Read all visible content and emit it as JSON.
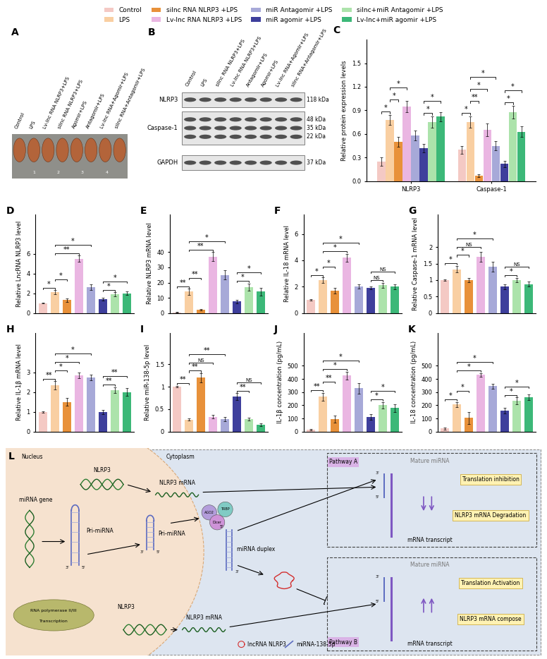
{
  "groups": [
    {
      "name": "Control",
      "color": "#f4c9c4"
    },
    {
      "name": "LPS",
      "color": "#f9cfa2"
    },
    {
      "name": "silnc RNA NLRP3 +LPS",
      "color": "#e8913a"
    },
    {
      "name": "Lv-lnc RNA NLRP3 +LPS",
      "color": "#eab6e2"
    },
    {
      "name": "miR Antagomir +LPS",
      "color": "#a7a9d8"
    },
    {
      "name": "miR agomir +LPS",
      "color": "#3e3f9c"
    },
    {
      "name": "silnc+miR Antagomir +LPS",
      "color": "#ace3ab"
    },
    {
      "name": "Lv-lnc+miR agomir +LPS",
      "color": "#3cb878"
    }
  ],
  "legend": "upper center",
  "panel_A": {
    "letter": "A",
    "labels": [
      "Control",
      "LPS",
      "Lv-lnc RNA NLRP3+LPS",
      "silnc RNA NLRP3+LPS",
      "Agomir+LPS",
      "Antagomir+LPS",
      "Lv-lnc RNA+Agomir+LPS",
      "silnc RNA+Antagomir+LPS"
    ],
    "ruler": [
      "1",
      "2",
      "3",
      "4"
    ]
  },
  "panel_B": {
    "letter": "B",
    "lanes": [
      "Control",
      "LPS",
      "silnc RNA NLRP3+LPS",
      "Lv-lnc RNA NLRP3+LPS",
      "Antagomir+LPS",
      "Agomir+LPS",
      "Lv-lnc RNA+Agomir+LPS",
      "silnc RNA+Antagomir+LPS"
    ],
    "proteins": [
      {
        "name": "NLRP3",
        "bands": [
          "118 kDa"
        ]
      },
      {
        "name": "Caspase-1",
        "bands": [
          "48 kDa",
          "35 kDa",
          "22 kDa"
        ]
      },
      {
        "name": "GAPDH",
        "bands": [
          "37 kDa"
        ]
      }
    ]
  },
  "chart_data": [
    {
      "letter": "C",
      "type": "bar",
      "y_label": "Relative protein expression levels",
      "categories": [
        "NLRP3",
        "Caspase-1"
      ],
      "series": [
        {
          "name": "Control",
          "color": "#f4c9c4",
          "values": [
            0.25,
            0.4
          ],
          "errors": [
            0.05,
            0.05
          ]
        },
        {
          "name": "LPS",
          "color": "#f9cfa2",
          "values": [
            0.78,
            0.75
          ],
          "errors": [
            0.06,
            0.07
          ]
        },
        {
          "name": "silnc RNA NLRP3 +LPS",
          "color": "#e8913a",
          "values": [
            0.5,
            0.07
          ],
          "errors": [
            0.06,
            0.02
          ]
        },
        {
          "name": "Lv-lnc RNA NLRP3 +LPS",
          "color": "#eab6e2",
          "values": [
            0.95,
            0.65
          ],
          "errors": [
            0.07,
            0.08
          ]
        },
        {
          "name": "miR Antagomir +LPS",
          "color": "#a7a9d8",
          "values": [
            0.58,
            0.45
          ],
          "errors": [
            0.06,
            0.06
          ]
        },
        {
          "name": "miR agomir +LPS",
          "color": "#3e3f9c",
          "values": [
            0.42,
            0.22
          ],
          "errors": [
            0.05,
            0.04
          ]
        },
        {
          "name": "silnc+miR Antagomir +LPS",
          "color": "#ace3ab",
          "values": [
            0.75,
            0.88
          ],
          "errors": [
            0.07,
            0.08
          ]
        },
        {
          "name": "Lv-lnc+miR agomir +LPS",
          "color": "#3cb878",
          "values": [
            0.82,
            0.63
          ],
          "errors": [
            0.06,
            0.07
          ]
        }
      ],
      "ylim": [
        0,
        1.8
      ],
      "yticks": [
        0.0,
        0.3,
        0.6,
        0.9,
        1.2,
        1.5
      ],
      "significance": [
        {
          "group": 0,
          "from": 0,
          "to": 1,
          "label": "*"
        },
        {
          "group": 0,
          "from": 1,
          "to": 2,
          "label": "*"
        },
        {
          "group": 0,
          "from": 1,
          "to": 3,
          "label": "*"
        },
        {
          "group": 0,
          "from": 5,
          "to": 6,
          "label": "*"
        },
        {
          "group": 0,
          "from": 5,
          "to": 7,
          "label": "*"
        },
        {
          "group": 1,
          "from": 0,
          "to": 1,
          "label": "*"
        },
        {
          "group": 1,
          "from": 1,
          "to": 2,
          "label": "**"
        },
        {
          "group": 1,
          "from": 1,
          "to": 3,
          "label": "*"
        },
        {
          "group": 1,
          "from": 1,
          "to": 4,
          "label": "*"
        },
        {
          "group": 1,
          "from": 5,
          "to": 6,
          "label": "*"
        },
        {
          "group": 1,
          "from": 5,
          "to": 7,
          "label": "*"
        }
      ]
    },
    {
      "letter": "D",
      "type": "bar",
      "y_label": "Relative LncRNA NLRP3 level",
      "tick_labels": "y",
      "values": [
        1,
        2.1,
        1.3,
        5.5,
        2.6,
        1.4,
        1.9,
        2.0
      ],
      "errors": [
        0.05,
        0.2,
        0.15,
        0.3,
        0.3,
        0.15,
        0.2,
        0.2
      ],
      "colors": [
        "#f4c9c4",
        "#f9cfa2",
        "#e8913a",
        "#eab6e2",
        "#a7a9d8",
        "#3e3f9c",
        "#ace3ab",
        "#3cb878"
      ],
      "ylim": [
        0,
        10
      ],
      "yticks": [
        0,
        2,
        4,
        6
      ],
      "significance": [
        {
          "from": 0,
          "to": 1,
          "label": "*"
        },
        {
          "from": 1,
          "to": 2,
          "label": "*"
        },
        {
          "from": 1,
          "to": 3,
          "label": "**"
        },
        {
          "from": 1,
          "to": 4,
          "label": "*"
        },
        {
          "from": 5,
          "to": 6,
          "label": "*"
        },
        {
          "from": 5,
          "to": 7,
          "label": "*"
        }
      ]
    },
    {
      "letter": "E",
      "type": "bar",
      "y_label": "Relative NLRP3 mRNA level",
      "tick_labels": "y",
      "values": [
        0.5,
        14,
        2,
        37,
        25,
        7.5,
        17,
        14
      ],
      "errors": [
        0.1,
        2,
        0.5,
        3,
        3,
        1.2,
        2.5,
        2.5
      ],
      "colors": [
        "#f4c9c4",
        "#f9cfa2",
        "#e8913a",
        "#eab6e2",
        "#a7a9d8",
        "#3e3f9c",
        "#ace3ab",
        "#3cb878"
      ],
      "ylim": [
        0,
        65
      ],
      "yticks": [
        0,
        10,
        20,
        30,
        40
      ],
      "significance": [
        {
          "from": 0,
          "to": 1,
          "label": "**"
        },
        {
          "from": 1,
          "to": 2,
          "label": "**"
        },
        {
          "from": 1,
          "to": 3,
          "label": "**"
        },
        {
          "from": 1,
          "to": 4,
          "label": "*"
        },
        {
          "from": 5,
          "to": 6,
          "label": "*"
        },
        {
          "from": 5,
          "to": 7,
          "label": "*"
        }
      ]
    },
    {
      "letter": "F",
      "type": "bar",
      "y_label": "Relative IL-18 mRNA level",
      "tick_labels": "y",
      "values": [
        1,
        2.5,
        1.7,
        4.2,
        2.0,
        1.9,
        2.1,
        2.0
      ],
      "errors": [
        0.05,
        0.2,
        0.2,
        0.3,
        0.15,
        0.1,
        0.2,
        0.2
      ],
      "colors": [
        "#f4c9c4",
        "#f9cfa2",
        "#e8913a",
        "#eab6e2",
        "#a7a9d8",
        "#3e3f9c",
        "#ace3ab",
        "#3cb878"
      ],
      "ylim": [
        0,
        7.5
      ],
      "yticks": [
        0,
        2,
        4,
        6
      ],
      "significance": [
        {
          "from": 0,
          "to": 1,
          "label": "*"
        },
        {
          "from": 1,
          "to": 2,
          "label": "*"
        },
        {
          "from": 1,
          "to": 3,
          "label": "*"
        },
        {
          "from": 1,
          "to": 4,
          "label": "*"
        },
        {
          "from": 5,
          "to": 6,
          "label": "NS"
        },
        {
          "from": 5,
          "to": 7,
          "label": "NS"
        }
      ]
    },
    {
      "letter": "G",
      "type": "bar",
      "y_label": "Relative Caspase-1 mRNA level",
      "tick_labels": "y",
      "values": [
        1,
        1.33,
        1.0,
        1.7,
        1.4,
        0.8,
        1.0,
        0.88
      ],
      "errors": [
        0.03,
        0.1,
        0.07,
        0.15,
        0.15,
        0.08,
        0.07,
        0.08
      ],
      "colors": [
        "#f4c9c4",
        "#f9cfa2",
        "#e8913a",
        "#eab6e2",
        "#a7a9d8",
        "#3e3f9c",
        "#ace3ab",
        "#3cb878"
      ],
      "ylim": [
        0,
        3
      ],
      "yticks": [
        0,
        0.5,
        1,
        1.5,
        2
      ],
      "significance": [
        {
          "from": 0,
          "to": 1,
          "label": "*"
        },
        {
          "from": 1,
          "to": 2,
          "label": "*"
        },
        {
          "from": 1,
          "to": 3,
          "label": "NS"
        },
        {
          "from": 1,
          "to": 4,
          "label": "*"
        },
        {
          "from": 5,
          "to": 6,
          "label": "*"
        },
        {
          "from": 5,
          "to": 7,
          "label": "NS"
        }
      ]
    },
    {
      "letter": "H",
      "type": "bar",
      "y_label": "Relative IL-1β mRNA level",
      "tick_labels": "y",
      "values": [
        1,
        2.35,
        1.5,
        2.85,
        2.75,
        1.0,
        2.1,
        2.0
      ],
      "errors": [
        0.03,
        0.2,
        0.2,
        0.15,
        0.15,
        0.1,
        0.15,
        0.2
      ],
      "colors": [
        "#f4c9c4",
        "#f9cfa2",
        "#e8913a",
        "#eab6e2",
        "#a7a9d8",
        "#3e3f9c",
        "#ace3ab",
        "#3cb878"
      ],
      "ylim": [
        0,
        5
      ],
      "yticks": [
        0,
        1,
        2,
        3
      ],
      "significance": [
        {
          "from": 0,
          "to": 1,
          "label": "**"
        },
        {
          "from": 1,
          "to": 2,
          "label": "*"
        },
        {
          "from": 1,
          "to": 3,
          "label": "*"
        },
        {
          "from": 1,
          "to": 4,
          "label": "*"
        },
        {
          "from": 5,
          "to": 6,
          "label": "**"
        },
        {
          "from": 5,
          "to": 7,
          "label": "**"
        }
      ]
    },
    {
      "letter": "I",
      "type": "bar",
      "y_label": "Relative miR-138-5p level",
      "tick_labels": "y",
      "values": [
        1,
        0.27,
        1.2,
        0.33,
        0.28,
        0.78,
        0.28,
        0.15
      ],
      "errors": [
        0.02,
        0.03,
        0.1,
        0.04,
        0.05,
        0.08,
        0.03,
        0.03
      ],
      "colors": [
        "#f4c9c4",
        "#f9cfa2",
        "#e8913a",
        "#eab6e2",
        "#a7a9d8",
        "#3e3f9c",
        "#ace3ab",
        "#3cb878"
      ],
      "ylim": [
        0,
        2.2
      ],
      "yticks": [
        0,
        0.5,
        1,
        1.5
      ],
      "significance": [
        {
          "from": 0,
          "to": 1,
          "label": "**"
        },
        {
          "from": 1,
          "to": 2,
          "label": "**"
        },
        {
          "from": 1,
          "to": 3,
          "label": "NS"
        },
        {
          "from": 1,
          "to": 4,
          "label": "**"
        },
        {
          "from": 5,
          "to": 6,
          "label": "**"
        },
        {
          "from": 5,
          "to": 7,
          "label": "NS"
        }
      ]
    },
    {
      "letter": "J",
      "type": "bar",
      "y_label": "IL-1β concentration (pg/mL)",
      "tick_labels": "y",
      "values": [
        15,
        265,
        95,
        425,
        330,
        110,
        200,
        180
      ],
      "errors": [
        3,
        30,
        25,
        30,
        40,
        20,
        25,
        30
      ],
      "colors": [
        "#f4c9c4",
        "#f9cfa2",
        "#e8913a",
        "#eab6e2",
        "#a7a9d8",
        "#3e3f9c",
        "#ace3ab",
        "#3cb878"
      ],
      "ylim": [
        0,
        750
      ],
      "yticks": [
        0,
        100,
        200,
        300,
        400,
        500
      ],
      "significance": [
        {
          "from": 0,
          "to": 1,
          "label": "**"
        },
        {
          "from": 1,
          "to": 2,
          "label": "**"
        },
        {
          "from": 1,
          "to": 3,
          "label": "*"
        },
        {
          "from": 1,
          "to": 4,
          "label": "*"
        },
        {
          "from": 5,
          "to": 6,
          "label": "*"
        },
        {
          "from": 5,
          "to": 7,
          "label": "*"
        }
      ]
    },
    {
      "letter": "K",
      "type": "bar",
      "y_label": "IL-18 concentration (pg/mL)",
      "tick_labels": "y",
      "values": [
        25,
        205,
        105,
        430,
        345,
        160,
        235,
        260
      ],
      "errors": [
        8,
        20,
        45,
        15,
        20,
        20,
        25,
        20
      ],
      "colors": [
        "#f4c9c4",
        "#f9cfa2",
        "#e8913a",
        "#eab6e2",
        "#a7a9d8",
        "#3e3f9c",
        "#ace3ab",
        "#3cb878"
      ],
      "ylim": [
        0,
        750
      ],
      "yticks": [
        0,
        100,
        200,
        300,
        400,
        500
      ],
      "significance": [
        {
          "from": 0,
          "to": 1,
          "label": "*"
        },
        {
          "from": 1,
          "to": 2,
          "label": "*"
        },
        {
          "from": 1,
          "to": 3,
          "label": "*"
        },
        {
          "from": 1,
          "to": 4,
          "label": "*"
        },
        {
          "from": 5,
          "to": 6,
          "label": "*"
        },
        {
          "from": 5,
          "to": 7,
          "label": "*"
        }
      ]
    }
  ],
  "panel_L": {
    "letter": "L",
    "texts": {
      "nucleus": "Nucleus",
      "cytoplasm": "Cytoplasm",
      "gene1": "NLRP3",
      "mrna1": "NLRP3 mRNA",
      "mirna_gene": "miRNA gene",
      "pri1": "Pri-miRNA",
      "pri2": "Pri-miRNA",
      "rnapol": "RNA polymerase II/III",
      "transcription": "Transcription",
      "ago2": "AGO2",
      "trbp": "TRBP",
      "dicer": "Dicer",
      "duplex": "miRNA duplex",
      "gene2": "NLRP3",
      "mrna2": "NLRP3 mRNA",
      "path_a": "Pathway A",
      "mature_a": "Mature miRNA",
      "inhib": "Translation inhibition",
      "degr": "NLRP3 mRNA Degradation",
      "transcript_a": "mRNA transcript",
      "path_b": "Pathway B",
      "mature_b": "Mature miRNA",
      "activ": "Translation Activation",
      "compose": "NLRP3 mRNA compose",
      "transcript_b": "mRNA transcript",
      "key_lnc": "lncRNA NLRP3",
      "key_mir": "miRNA-138-5p"
    },
    "primes": [
      "3'",
      "5'",
      "3'",
      "5'",
      "5'",
      "3'",
      "3'",
      "5'",
      "3'",
      "5'"
    ]
  }
}
